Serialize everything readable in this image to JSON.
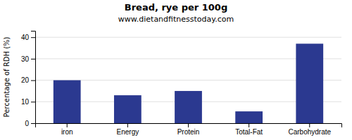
{
  "chart_data": {
    "type": "bar",
    "title": "Bread, rye per 100g",
    "subtitle": "www.dietandfitnesstoday.com",
    "ylabel": "Percentage of RDH (%)",
    "categories": [
      "iron",
      "Energy",
      "Protein",
      "Total-Fat",
      "Carbohydrate"
    ],
    "values": [
      20,
      13,
      15,
      5.5,
      37
    ],
    "color": "#2b3990",
    "ylim": [
      0,
      43
    ],
    "yticks": [
      0,
      10,
      20,
      30,
      40
    ],
    "grid": true
  }
}
